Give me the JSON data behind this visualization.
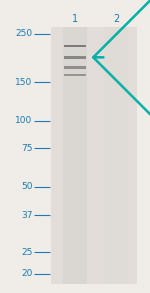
{
  "background_color": "#f0ede8",
  "gel_bg_color": "#e2ddd8",
  "lane1_color": "#d8d4cf",
  "lane2_color": "#dedad5",
  "fig_width": 1.5,
  "fig_height": 2.93,
  "dpi": 100,
  "lane_labels": [
    "1",
    "2"
  ],
  "mw_markers": [
    250,
    150,
    100,
    75,
    50,
    37,
    25,
    20
  ],
  "mw_log_min": 1.255,
  "mw_log_max": 2.431,
  "marker_color": "#1a7ab5",
  "arrow_color": "#00b0a8",
  "label_color": "#1a7ab5",
  "band_mw_values": [
    220,
    195,
    175,
    162
  ],
  "band_intensities": [
    0.55,
    0.42,
    0.32,
    0.22
  ],
  "label_fontsize": 6.5,
  "lane_label_fontsize": 7
}
